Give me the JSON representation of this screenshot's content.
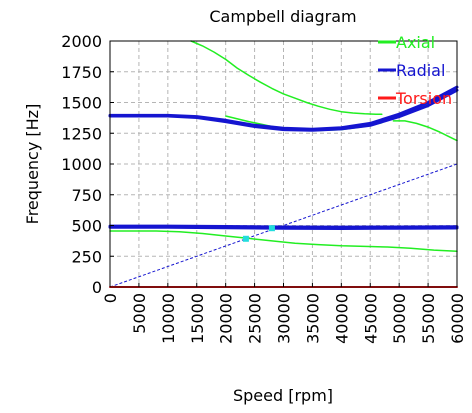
{
  "chart_data": {
    "type": "line",
    "title": "Campbell diagram",
    "xlabel": "Speed [rpm]",
    "ylabel": "Frequency [Hz]",
    "xlim": [
      0,
      60000
    ],
    "ylim": [
      0,
      2000
    ],
    "xticks": [
      "0",
      "5000",
      "10000",
      "15000",
      "20000",
      "25000",
      "30000",
      "35000",
      "40000",
      "45000",
      "50000",
      "55000",
      "60000"
    ],
    "yticks": [
      "0",
      "250",
      "500",
      "750",
      "1000",
      "1250",
      "1500",
      "1750",
      "2000"
    ],
    "grid": true,
    "legend_position": "top-right",
    "legend": [
      {
        "label": "Axial",
        "color": "#22ee22"
      },
      {
        "label": "Radial",
        "color": "#1515d0"
      },
      {
        "label": "Torsion",
        "color": "#ff1a1a"
      }
    ],
    "series": [
      {
        "name": "Axial",
        "color": "#22ee22",
        "width": 1.5,
        "x": [
          14000,
          16000,
          18000,
          20000,
          22000,
          24000,
          26000,
          28000,
          30000,
          32000,
          34000,
          36000,
          38000,
          40000,
          42000,
          44000,
          46000,
          47000
        ],
        "y": [
          2000,
          1960,
          1910,
          1850,
          1780,
          1720,
          1665,
          1615,
          1570,
          1535,
          1500,
          1470,
          1445,
          1425,
          1415,
          1408,
          1405,
          1405
        ]
      },
      {
        "name": "Axial",
        "color": "#22ee22",
        "width": 1.5,
        "x": [
          20000,
          24000,
          28000,
          32000,
          36000,
          40000,
          44000,
          47000
        ],
        "y": [
          1390,
          1345,
          1305,
          1280,
          1272,
          1280,
          1305,
          1335
        ]
      },
      {
        "name": "Axial",
        "color": "#22ee22",
        "width": 1.5,
        "x": [
          49000,
          51000,
          53000,
          55000,
          57000,
          58500,
          60000
        ],
        "y": [
          1350,
          1350,
          1330,
          1300,
          1260,
          1225,
          1190
        ]
      },
      {
        "name": "Axial",
        "color": "#22ee22",
        "width": 1.5,
        "x": [
          0,
          4000,
          8000,
          12000,
          16000,
          20000,
          24000,
          28000,
          32000,
          36000,
          40000,
          44000,
          48000,
          52000,
          56000,
          60000
        ],
        "y": [
          455,
          455,
          455,
          450,
          435,
          415,
          395,
          375,
          355,
          345,
          335,
          330,
          325,
          315,
          300,
          290
        ]
      },
      {
        "name": "Radial",
        "color": "#1515d0",
        "width": 3,
        "x": [
          0,
          5000,
          10000,
          15000,
          20000,
          25000,
          30000,
          35000,
          40000,
          45000,
          50000,
          55000,
          60000
        ],
        "y": [
          1395,
          1395,
          1395,
          1385,
          1355,
          1315,
          1290,
          1282,
          1295,
          1330,
          1405,
          1500,
          1625
        ]
      },
      {
        "name": "Radial",
        "color": "#1515d0",
        "width": 3,
        "x": [
          0,
          5000,
          10000,
          15000,
          20000,
          25000,
          30000,
          35000,
          40000,
          45000,
          50000,
          55000,
          60000
        ],
        "y": [
          1390,
          1390,
          1390,
          1378,
          1345,
          1305,
          1280,
          1275,
          1285,
          1315,
          1385,
          1475,
          1600
        ]
      },
      {
        "name": "Radial",
        "color": "#1515d0",
        "width": 3,
        "x": [
          0,
          10000,
          20000,
          30000,
          40000,
          50000,
          60000
        ],
        "y": [
          495,
          495,
          492,
          488,
          487,
          488,
          490
        ]
      },
      {
        "name": "Radial",
        "color": "#1515d0",
        "width": 3,
        "x": [
          0,
          10000,
          20000,
          30000,
          40000,
          50000,
          60000
        ],
        "y": [
          485,
          485,
          482,
          478,
          476,
          478,
          480
        ]
      },
      {
        "name": "Torsion",
        "color": "#ff1a1a",
        "width": 2,
        "x": [
          0,
          60000
        ],
        "y": [
          0,
          0
        ]
      }
    ],
    "excitation_line": {
      "color": "#1515d0",
      "x": [
        0,
        60000
      ],
      "y": [
        0,
        1000
      ]
    },
    "intersections": [
      {
        "x": 23500,
        "y": 392,
        "color": "#22dddd"
      },
      {
        "x": 28000,
        "y": 478,
        "color": "#22dddd"
      }
    ]
  }
}
